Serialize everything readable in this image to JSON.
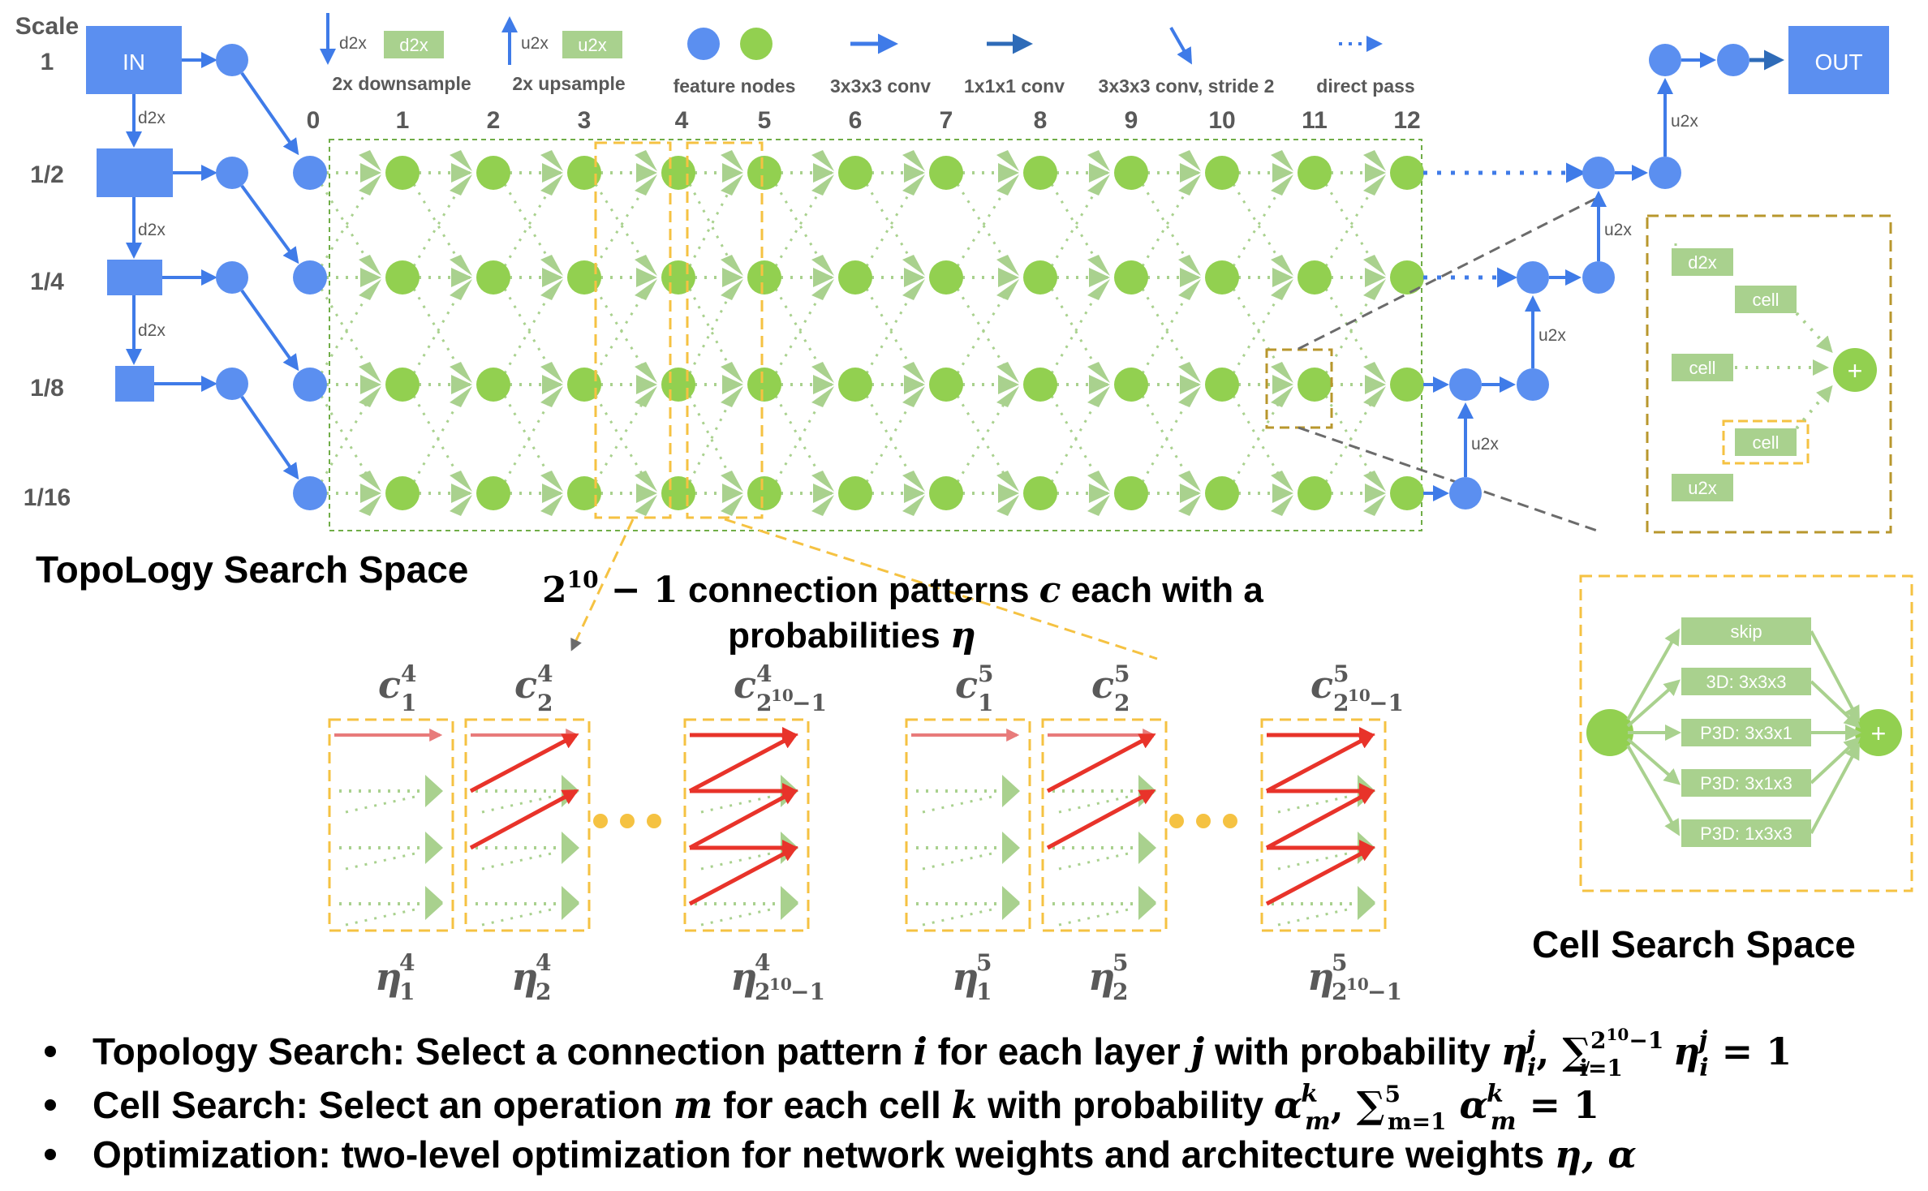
{
  "scales": {
    "header": "Scale",
    "labels": [
      "1",
      "1/2",
      "1/4",
      "1/8",
      "1/16"
    ]
  },
  "io": {
    "input": "IN",
    "output": "OUT"
  },
  "edge_labels": {
    "down": "d2x",
    "up": "u2x"
  },
  "legend": {
    "downsample": {
      "icon_label": "d2x",
      "caption": "2x downsample"
    },
    "upsample": {
      "icon_label": "u2x",
      "caption": "2x upsample"
    },
    "feature_nodes": "feature nodes",
    "conv3": "3x3x3 conv",
    "conv1": "1x1x1 conv",
    "conv3_stride2": "3x3x3 conv, stride 2",
    "direct_pass": "direct pass"
  },
  "columns": [
    "0",
    "1",
    "2",
    "3",
    "4",
    "5",
    "6",
    "7",
    "8",
    "9",
    "10",
    "11",
    "12"
  ],
  "topology_title": "TopoLogy Search Space",
  "connection_caption": {
    "line1_base": "2",
    "line1_exp": "10",
    "line1_minus": " − 1",
    "line1_rest": " connection patterns ",
    "line1_var": "c",
    "line1_tail": " each with a",
    "line2": "probabilities ",
    "line2_var": "η"
  },
  "patterns": [
    {
      "c_sup": "4",
      "c_sub": "1",
      "eta_sub": "1"
    },
    {
      "c_sup": "4",
      "c_sub": "2",
      "eta_sub": "2"
    },
    {
      "c_sup": "4",
      "c_sub": "2",
      "c_sub_exp": "10",
      "c_sub_tail": "−1",
      "eta_sub": "2",
      "eta_sub_exp": "10",
      "eta_sub_tail": "−1"
    },
    {
      "c_sup": "5",
      "c_sub": "1",
      "eta_sub": "1"
    },
    {
      "c_sup": "5",
      "c_sub": "2",
      "eta_sub": "2"
    },
    {
      "c_sup": "5",
      "c_sub": "2",
      "c_sub_exp": "10",
      "c_sub_tail": "−1",
      "eta_sub": "2",
      "eta_sub_exp": "10",
      "eta_sub_tail": "−1"
    }
  ],
  "pattern_letters": {
    "c": "c",
    "eta": "η"
  },
  "cell_detail": {
    "d2x": "d2x",
    "cell_top": "cell",
    "cell_mid": "cell",
    "cell_bottom": "cell",
    "u2x": "u2x",
    "plus": "+"
  },
  "cell_ops": [
    "skip",
    "3D: 3x3x3",
    "P3D: 3x3x1",
    "P3D: 3x1x3",
    "P3D: 1x3x3"
  ],
  "cell_title": "Cell Search Space",
  "bullets": [
    {
      "lead": "Topology Search: Select a connection pattern ",
      "var_i": "i",
      "mid": " for each layer ",
      "var_j": "j",
      "tail": " with probability ",
      "formula": "η",
      "formula_sup": "j",
      "formula_sub": "i",
      "sum_text": ", ∑",
      "sum_sub": "i=1",
      "sum_sup": "2",
      "sum_sup_exp": "10",
      "sum_sup_tail": "−1",
      "sum_body": " η",
      "eq": " = 1"
    },
    {
      "lead": "Cell Search: Select an operation ",
      "var_m": "m",
      "mid": " for each cell ",
      "var_k": "k",
      "tail": " with probability ",
      "formula": "α",
      "formula_sup": "k",
      "formula_sub": "m",
      "sum_text": ", ∑",
      "sum_sub": "m=1",
      "sum_sup": "5",
      "sum_body": " α",
      "eq": " = 1"
    },
    {
      "lead": "Optimization: two-level optimization for network weights and architecture weights ",
      "formula": "η, α"
    }
  ],
  "colors": {
    "blue": "#5b8ff0",
    "blue_dark": "#2e6ee6",
    "arrow_blue": "#3f7be8",
    "green_node": "#92d050",
    "green_light": "#a9d18e",
    "green_dots": "#a9d18e",
    "orange_dash": "#f5c242",
    "olive_dash": "#b8972d",
    "red": "#e8332a",
    "pink": "#e87b7b",
    "gray_text": "#595959"
  },
  "icon_names": [
    "plus-icon",
    "ellipsis-dots-icon",
    "arrow-icon"
  ]
}
